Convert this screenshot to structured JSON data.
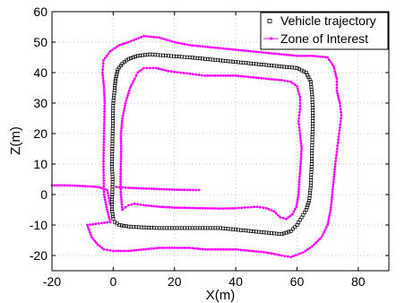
{
  "chart_data": {
    "type": "scatter",
    "title": "",
    "xlabel": "X(m)",
    "ylabel": "Z(m)",
    "xlim": [
      -20,
      90
    ],
    "ylim": [
      -25,
      60
    ],
    "x_ticks": [
      -20,
      0,
      20,
      40,
      60,
      80
    ],
    "y_ticks": [
      -20,
      -10,
      0,
      10,
      20,
      30,
      40,
      50,
      60
    ],
    "grid": true,
    "legend_position": "top-right",
    "colors": {
      "trajectory": "#000000",
      "zone": "#ff00ff",
      "grid": "#b4b4b4",
      "axes": "#000000"
    },
    "series": [
      {
        "name": "Vehicle trajectory",
        "marker": "square",
        "color": "#000000",
        "points": [
          [
            0,
            -8
          ],
          [
            -0.5,
            -4
          ],
          [
            -0.3,
            0
          ],
          [
            -0.2,
            5
          ],
          [
            -0.4,
            10
          ],
          [
            -0.3,
            15
          ],
          [
            -0.2,
            20
          ],
          [
            -0.1,
            25
          ],
          [
            0,
            30
          ],
          [
            0.5,
            35
          ],
          [
            0.8,
            38
          ],
          [
            1.5,
            41
          ],
          [
            3,
            43
          ],
          [
            5,
            44.5
          ],
          [
            8,
            45.5
          ],
          [
            12,
            46
          ],
          [
            18,
            45.5
          ],
          [
            25,
            45
          ],
          [
            30,
            44.5
          ],
          [
            35,
            44
          ],
          [
            40,
            43.5
          ],
          [
            45,
            43
          ],
          [
            50,
            42.5
          ],
          [
            55,
            42
          ],
          [
            60,
            41.5
          ],
          [
            63,
            40
          ],
          [
            64.5,
            37
          ],
          [
            65,
            32
          ],
          [
            65.2,
            25
          ],
          [
            65,
            18
          ],
          [
            64.8,
            10
          ],
          [
            64.5,
            3
          ],
          [
            64,
            -2
          ],
          [
            63,
            -5
          ],
          [
            61.5,
            -7.5
          ],
          [
            60,
            -10
          ],
          [
            58,
            -12
          ],
          [
            55,
            -13
          ],
          [
            50,
            -12.5
          ],
          [
            45,
            -12
          ],
          [
            40,
            -11.5
          ],
          [
            35,
            -11
          ],
          [
            30,
            -11
          ],
          [
            25,
            -11
          ],
          [
            20,
            -11
          ],
          [
            15,
            -11
          ],
          [
            10,
            -10.8
          ],
          [
            5,
            -10.5
          ],
          [
            2,
            -10
          ],
          [
            0.5,
            -9
          ]
        ]
      },
      {
        "name": "Zone of Interest",
        "marker": "dot",
        "color": "#ff00ff",
        "rings": [
          [
            [
              -1,
              -9
            ],
            [
              -2,
              -5
            ],
            [
              -3,
              0
            ],
            [
              -3.2,
              10
            ],
            [
              -3,
              20
            ],
            [
              -2.8,
              30
            ],
            [
              -3,
              35
            ],
            [
              -3.5,
              40
            ],
            [
              -3.2,
              44
            ],
            [
              -1,
              47
            ],
            [
              2,
              49
            ],
            [
              5,
              50
            ],
            [
              10,
              52
            ],
            [
              15,
              51.5
            ],
            [
              20,
              50
            ],
            [
              25,
              49
            ],
            [
              30,
              48.5
            ],
            [
              35,
              48
            ],
            [
              40,
              47.5
            ],
            [
              45,
              47
            ],
            [
              50,
              46.5
            ],
            [
              55,
              46
            ],
            [
              60,
              45.5
            ],
            [
              65,
              45.5
            ],
            [
              70,
              45
            ],
            [
              72,
              42
            ],
            [
              73,
              38
            ],
            [
              73,
              34
            ],
            [
              74,
              30
            ],
            [
              74.5,
              26
            ],
            [
              74,
              22
            ],
            [
              73.5,
              18
            ],
            [
              73,
              14
            ],
            [
              72.5,
              10
            ],
            [
              72,
              5
            ],
            [
              71.5,
              0
            ],
            [
              71,
              -5
            ],
            [
              70,
              -10
            ],
            [
              68,
              -14
            ],
            [
              65,
              -17
            ],
            [
              62,
              -19
            ],
            [
              58,
              -20.5
            ],
            [
              55,
              -20
            ],
            [
              50,
              -19
            ],
            [
              45,
              -18.5
            ],
            [
              40,
              -18
            ],
            [
              35,
              -18
            ],
            [
              30,
              -18
            ],
            [
              25,
              -17.5
            ],
            [
              20,
              -17.5
            ],
            [
              15,
              -17.5
            ],
            [
              10,
              -18
            ],
            [
              5,
              -18.5
            ],
            [
              0,
              -18.5
            ],
            [
              -3,
              -18
            ],
            [
              -5,
              -16.5
            ],
            [
              -7,
              -14
            ],
            [
              -8.5,
              -10
            ]
          ],
          [
            [
              3,
              -5
            ],
            [
              2.5,
              0
            ],
            [
              2.4,
              5
            ],
            [
              2.5,
              10
            ],
            [
              2.6,
              15
            ],
            [
              2.5,
              20
            ],
            [
              3,
              25
            ],
            [
              4,
              30
            ],
            [
              5.5,
              35
            ],
            [
              7,
              38
            ],
            [
              8,
              40
            ],
            [
              10,
              41.5
            ],
            [
              14,
              41.5
            ],
            [
              18,
              40.5
            ],
            [
              22,
              40
            ],
            [
              26,
              39.5
            ],
            [
              30,
              39
            ],
            [
              35,
              39
            ],
            [
              40,
              39
            ],
            [
              45,
              38.5
            ],
            [
              50,
              38
            ],
            [
              55,
              37.5
            ],
            [
              58,
              37
            ],
            [
              60,
              35.5
            ],
            [
              61,
              32
            ],
            [
              61,
              28
            ],
            [
              60.5,
              24
            ],
            [
              61,
              20
            ],
            [
              61.5,
              15
            ],
            [
              61.2,
              10
            ],
            [
              60.8,
              5
            ],
            [
              60.5,
              0
            ],
            [
              59.8,
              -4
            ],
            [
              58.5,
              -6.5
            ],
            [
              56.5,
              -8
            ],
            [
              54.5,
              -7.5
            ],
            [
              52.5,
              -5.5
            ],
            [
              50,
              -4.5
            ],
            [
              47,
              -4
            ],
            [
              44,
              -4.2
            ],
            [
              40,
              -4.5
            ],
            [
              35,
              -4.6
            ],
            [
              30,
              -4.5
            ],
            [
              25,
              -4.4
            ],
            [
              20,
              -4.3
            ],
            [
              15,
              -4
            ],
            [
              10,
              -3.5
            ],
            [
              7,
              -3
            ],
            [
              5,
              -3.5
            ],
            [
              4,
              -4.2
            ]
          ]
        ],
        "lines": [
          [
            [
              -20,
              3
            ],
            [
              -15,
              3
            ],
            [
              -10,
              2.8
            ],
            [
              -5,
              2.5
            ],
            [
              -2,
              1.5
            ],
            [
              -1,
              -3
            ]
          ],
          [
            [
              1,
              2.5
            ],
            [
              5,
              2.2
            ],
            [
              10,
              2
            ],
            [
              15,
              1.8
            ],
            [
              20,
              1.6
            ],
            [
              25,
              1.5
            ],
            [
              28,
              1.5
            ]
          ]
        ]
      }
    ]
  }
}
